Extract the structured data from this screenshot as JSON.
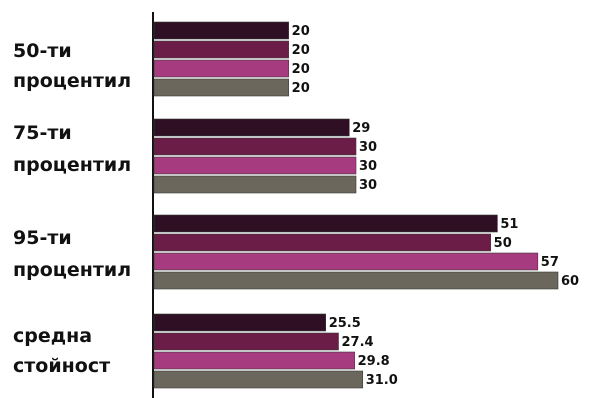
{
  "chart_data": {
    "type": "bar",
    "orientation": "horizontal",
    "categories": [
      [
        "50-ти",
        "процентил"
      ],
      [
        "75-ти",
        "процентил"
      ],
      [
        "95-ти",
        "процентил"
      ],
      [
        "средна",
        "стойност"
      ]
    ],
    "series": [
      {
        "values": [
          20,
          29,
          51,
          25.5
        ],
        "labels": [
          "20",
          "29",
          "51",
          "25.5"
        ],
        "color": "#2e0f24"
      },
      {
        "values": [
          20,
          30,
          50,
          27.4
        ],
        "labels": [
          "20",
          "30",
          "50",
          "27.4"
        ],
        "color": "#6b1d48"
      },
      {
        "values": [
          20,
          30,
          57,
          29.8
        ],
        "labels": [
          "20",
          "30",
          "57",
          "29.8"
        ],
        "color": "#a73b7f"
      },
      {
        "values": [
          20,
          30,
          60,
          31.0
        ],
        "labels": [
          "20",
          "30",
          "60",
          "31.0"
        ],
        "color": "#6b675d"
      }
    ],
    "xlim": [
      0,
      60
    ],
    "grid": false,
    "legend": "none",
    "title": "",
    "xlabel": "",
    "ylabel": ""
  }
}
